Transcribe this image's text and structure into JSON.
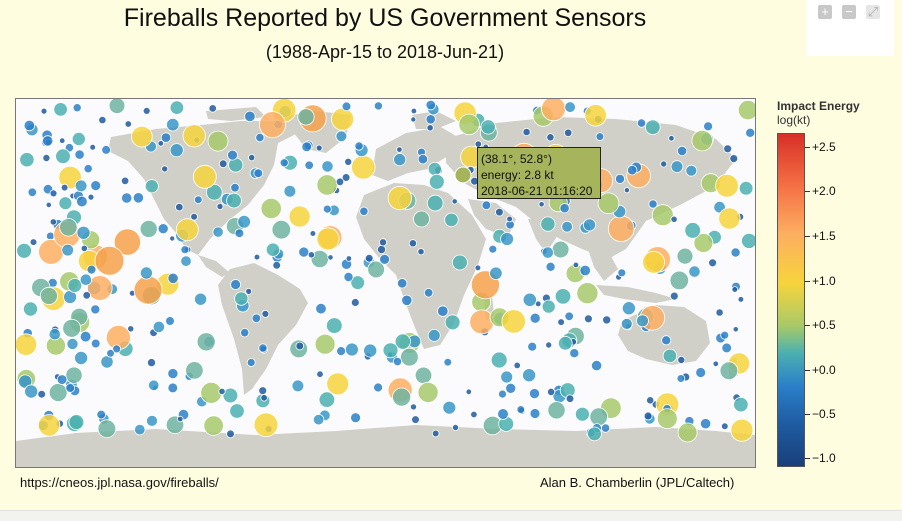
{
  "header": {
    "title": "Fireballs Reported by US Government Sensors",
    "subtitle": "(1988-Apr-15 to 2018-Jun-21)"
  },
  "controls": {
    "zoom_in": "+",
    "zoom_out": "−",
    "fullscreen": "⤢",
    "icons": [
      "plus-icon",
      "minus-icon",
      "fullscreen-icon"
    ]
  },
  "tooltip": {
    "coords": "(38.1°, 52.8°)",
    "energy": "energy: 2.8 kt",
    "datetime": "2018-06-21 01:16:20"
  },
  "legend": {
    "title": "Impact Energy",
    "subtitle": "log(kt)",
    "ticks": [
      "+2.5",
      "+2.0",
      "+1.5",
      "+1.0",
      "+0.5",
      "+0.0",
      "−0.5",
      "−1.0"
    ],
    "colors": [
      "#d73027",
      "#f46d43",
      "#fdae61",
      "#f6d43c",
      "#a6c96a",
      "#2a7fc8",
      "#1a3f7a"
    ]
  },
  "footer": {
    "source_url": "https://cneos.jpl.nasa.gov/fireballs/",
    "credit": "Alan B. Chamberlin (JPL/Caltech)"
  },
  "colors": {
    "panel_bg": "#fffde0",
    "land": "#d0d0c8",
    "ocean": "#fbfbfe"
  }
}
